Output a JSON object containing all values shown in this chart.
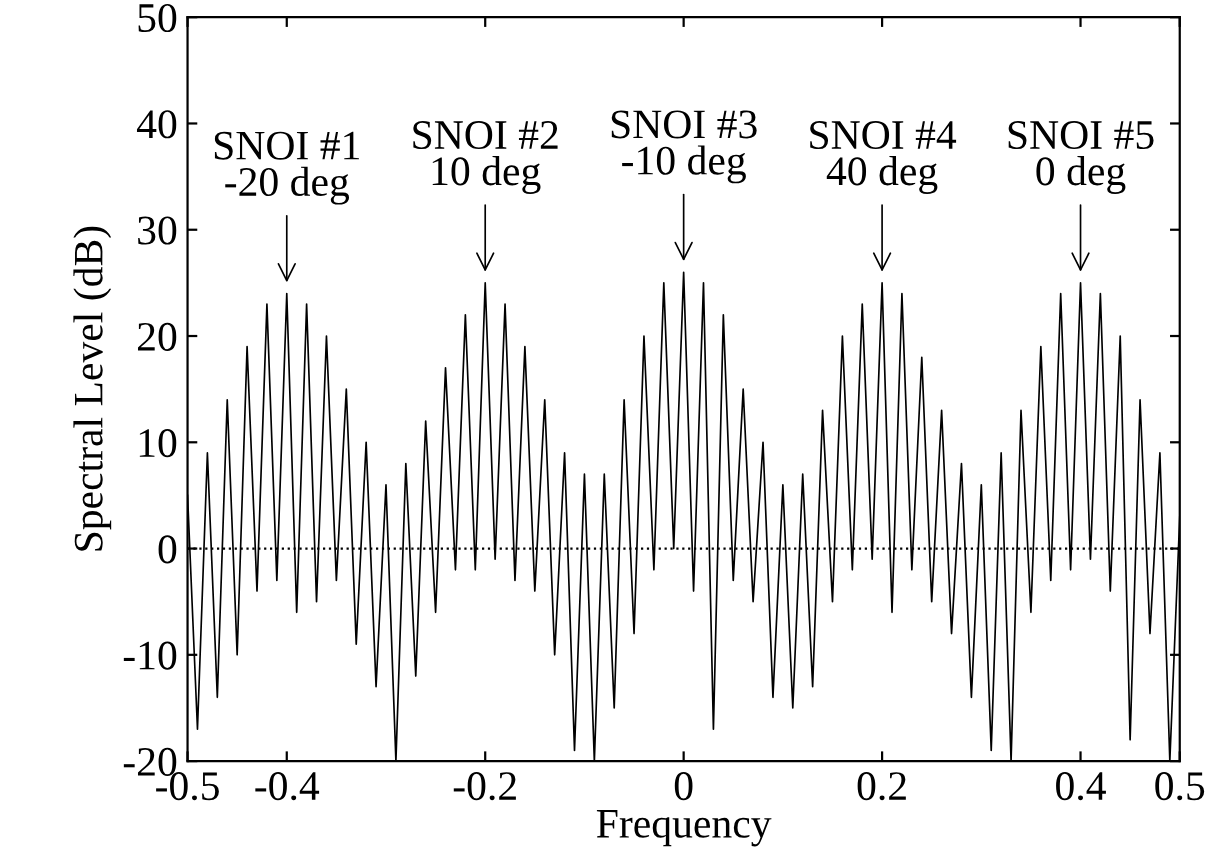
{
  "chart_data": {
    "type": "line",
    "xlabel": "Frequency",
    "ylabel": "Spectral Level (dB)",
    "xlim": [
      -0.5,
      0.5
    ],
    "ylim": [
      -20,
      50
    ],
    "xticks": [
      -0.5,
      -0.4,
      -0.2,
      0,
      0.2,
      0.4,
      0.5
    ],
    "yticks": [
      -20,
      -10,
      0,
      10,
      20,
      30,
      40,
      50
    ],
    "grid": false,
    "legend": false,
    "marker": "none",
    "line_style": "solid",
    "series": [
      {
        "color": "#000000",
        "x": [
          -0.5,
          -0.49,
          -0.48,
          -0.47,
          -0.46,
          -0.45,
          -0.44,
          -0.43,
          -0.42,
          -0.41,
          -0.4,
          -0.39,
          -0.38,
          -0.37,
          -0.36,
          -0.35,
          -0.34,
          -0.33,
          -0.32,
          -0.31,
          -0.3,
          -0.29,
          -0.28,
          -0.27,
          -0.26,
          -0.25,
          -0.24,
          -0.23,
          -0.22,
          -0.21,
          -0.2,
          -0.19,
          -0.18,
          -0.17,
          -0.16,
          -0.15,
          -0.14,
          -0.13,
          -0.12,
          -0.11,
          -0.1,
          -0.09,
          -0.08,
          -0.07,
          -0.06,
          -0.05,
          -0.04,
          -0.03,
          -0.02,
          -0.01,
          0.0,
          0.01,
          0.02,
          0.03,
          0.04,
          0.05,
          0.06,
          0.07,
          0.08,
          0.09,
          0.1,
          0.11,
          0.12,
          0.13,
          0.14,
          0.15,
          0.16,
          0.17,
          0.18,
          0.19,
          0.2,
          0.21,
          0.22,
          0.23,
          0.24,
          0.25,
          0.26,
          0.27,
          0.28,
          0.29,
          0.3,
          0.31,
          0.32,
          0.33,
          0.34,
          0.35,
          0.36,
          0.37,
          0.38,
          0.39,
          0.4,
          0.41,
          0.42,
          0.43,
          0.44,
          0.45,
          0.46,
          0.47,
          0.48,
          0.49,
          0.5
        ],
        "values": [
          5,
          -17,
          9,
          -14,
          14,
          -10,
          19,
          -4,
          23,
          -3,
          24,
          -6,
          23,
          -5,
          20,
          -3,
          15,
          -9,
          10,
          -13,
          6,
          -20,
          8,
          -12,
          12,
          -6,
          17,
          -2,
          22,
          -2,
          25,
          -1,
          23,
          -3,
          19,
          -4,
          14,
          -10,
          9,
          -19,
          7,
          -20,
          7,
          -15,
          14,
          -8,
          20,
          -2,
          25,
          0,
          26,
          -4,
          25,
          -17,
          22,
          -3,
          15,
          -5,
          10,
          -14,
          6,
          -15,
          7,
          -13,
          13,
          -5,
          20,
          -2,
          23,
          -1,
          25,
          -6,
          24,
          -2,
          18,
          -5,
          13,
          -8,
          8,
          -14,
          6,
          -19,
          9,
          -20,
          13,
          -6,
          19,
          -3,
          24,
          -2,
          25,
          -1,
          24,
          -4,
          20,
          -18,
          14,
          -8,
          9,
          -20,
          3
        ]
      }
    ],
    "ref_lines": [
      {
        "axis": "y",
        "value": 0,
        "line_style": "dotted",
        "color": "#000000"
      }
    ],
    "annotations": [
      {
        "text": "SNOI #1\n-20 deg",
        "x": -0.4,
        "y": 24
      },
      {
        "text": "SNOI #2\n10 deg",
        "x": -0.2,
        "y": 25
      },
      {
        "text": "SNOI #3\n-10 deg",
        "x": 0,
        "y": 26
      },
      {
        "text": "SNOI #4\n40 deg",
        "x": 0.2,
        "y": 25
      },
      {
        "text": "SNOI #5\n0 deg",
        "x": 0.4,
        "y": 25
      }
    ]
  }
}
